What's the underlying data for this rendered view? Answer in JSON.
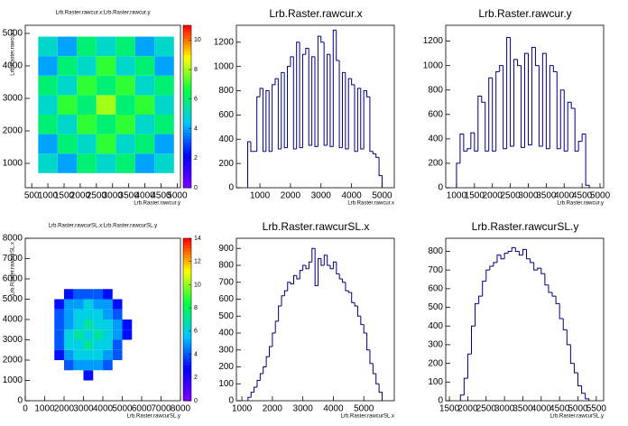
{
  "chart_data": [
    {
      "type": "heatmap",
      "title": "Lrb.Raster.rawcur.x:Lrb.Raster.rawcur.y",
      "x_label": "Lrb.Raster.rawcur.y",
      "y_label": "Lrb.Raster.rawcur.x",
      "xbins": [
        700,
        1300,
        1900,
        2500,
        3100,
        3700,
        4300,
        4900
      ],
      "ybins": [
        700,
        1300,
        1900,
        2500,
        3100,
        3700,
        4300,
        4900
      ],
      "z": [
        [
          5,
          4,
          6,
          5,
          6,
          4,
          5
        ],
        [
          4,
          6,
          5,
          7,
          5,
          6,
          4
        ],
        [
          6,
          5,
          7,
          6,
          7,
          5,
          6
        ],
        [
          5,
          7,
          6,
          8,
          6,
          7,
          5
        ],
        [
          6,
          5,
          7,
          6,
          7,
          5,
          6
        ],
        [
          4,
          6,
          5,
          7,
          5,
          6,
          4
        ],
        [
          5,
          4,
          6,
          5,
          6,
          4,
          5
        ]
      ],
      "xlim": [
        300,
        5100
      ],
      "xticks": [
        500,
        1000,
        1500,
        2000,
        2500,
        3000,
        3500,
        4000,
        4500,
        5000
      ],
      "ylim": [
        250,
        5250
      ],
      "yticks": [
        1000,
        2000,
        3000,
        4000,
        5000
      ],
      "zlim": [
        0,
        11
      ],
      "zticks": [
        0,
        2,
        4,
        6,
        8,
        10
      ],
      "palette": [
        "#8000ff",
        "#0000ff",
        "#00c8ff",
        "#00ff40",
        "#ffff00",
        "#ff0000"
      ]
    },
    {
      "type": "histogram",
      "title": "Lrb.Raster.rawcur.x",
      "x_label": "Lrb.Raster.rawcur.x",
      "color": "#000080",
      "bins": [
        600,
        700,
        800,
        900,
        1000,
        1100,
        1200,
        1300,
        1400,
        1500,
        1600,
        1700,
        1800,
        1900,
        2000,
        2100,
        2200,
        2300,
        2400,
        2500,
        2600,
        2700,
        2800,
        2900,
        3000,
        3100,
        3200,
        3300,
        3400,
        3500,
        3600,
        3700,
        3800,
        3900,
        4000,
        4100,
        4200,
        4300,
        4400,
        4500,
        4600,
        4700,
        4800,
        4900,
        5000
      ],
      "values": [
        380,
        300,
        300,
        750,
        820,
        300,
        800,
        300,
        850,
        900,
        320,
        950,
        330,
        1000,
        1080,
        320,
        1200,
        330,
        1100,
        1150,
        350,
        1080,
        340,
        1250,
        1200,
        350,
        1100,
        340,
        1300,
        1050,
        330,
        950,
        320,
        900,
        850,
        300,
        820,
        320,
        800,
        750,
        300,
        280,
        250,
        100
      ],
      "xlim": [
        230,
        5400
      ],
      "xticks": [
        1000,
        2000,
        3000,
        4000,
        5000
      ],
      "ylim": [
        0,
        1340
      ],
      "yticks": [
        0,
        200,
        400,
        600,
        800,
        1000,
        1200
      ]
    },
    {
      "type": "histogram",
      "title": "Lrb.Raster.rawcur.y",
      "x_label": "Lrb.Raster.rawcur.y",
      "color": "#000080",
      "bins": [
        1000,
        1100,
        1200,
        1300,
        1400,
        1500,
        1600,
        1700,
        1800,
        1900,
        2000,
        2100,
        2200,
        2300,
        2400,
        2500,
        2600,
        2700,
        2800,
        2900,
        3000,
        3100,
        3200,
        3300,
        3400,
        3500,
        3600,
        3700,
        3800,
        3900,
        4000,
        4100,
        4200,
        4300,
        4400,
        4500,
        4600,
        4700
      ],
      "values": [
        200,
        440,
        300,
        320,
        450,
        300,
        750,
        700,
        300,
        900,
        300,
        950,
        1000,
        320,
        1230,
        340,
        1050,
        1000,
        330,
        1100,
        350,
        1150,
        1000,
        340,
        1100,
        320,
        1000,
        950,
        320,
        800,
        300,
        700,
        650,
        300,
        380,
        440,
        20
      ],
      "xlim": [
        700,
        5100
      ],
      "xticks": [
        1000,
        1500,
        2000,
        2500,
        3000,
        3500,
        4000,
        4500,
        5000
      ],
      "ylim": [
        0,
        1330
      ],
      "yticks": [
        0,
        200,
        400,
        600,
        800,
        1000,
        1200
      ]
    },
    {
      "type": "heatmap",
      "title": "Lrb.Raster.rawcurSL.x:Lrb.Raster.rawcurSL.y",
      "x_label": "Lrb.Raster.rawcurSL.y",
      "y_label": "Lrb.Raster.rawcurSL.x",
      "xbins": [
        1000,
        1500,
        2000,
        2500,
        3000,
        3500,
        4000,
        4500,
        5000,
        5500
      ],
      "ybins": [
        1000,
        1500,
        2000,
        2500,
        3000,
        3500,
        4000,
        4500,
        5000,
        5500
      ],
      "z": [
        [
          null,
          null,
          null,
          null,
          3,
          null,
          null,
          null,
          null
        ],
        [
          null,
          null,
          4,
          5,
          5,
          5,
          4,
          null,
          null
        ],
        [
          null,
          3,
          5,
          6,
          6,
          6,
          5,
          4,
          null
        ],
        [
          null,
          4,
          6,
          6,
          7,
          6,
          6,
          4,
          null
        ],
        [
          null,
          4,
          6,
          7,
          6,
          7,
          6,
          5,
          3
        ],
        [
          null,
          4,
          5,
          6,
          7,
          6,
          6,
          5,
          3
        ],
        [
          null,
          4,
          5,
          6,
          6,
          6,
          5,
          4,
          null
        ],
        [
          null,
          3,
          5,
          5,
          6,
          5,
          5,
          3,
          null
        ],
        [
          null,
          null,
          3,
          4,
          4,
          4,
          3,
          null,
          null
        ]
      ],
      "xlim": [
        0,
        8000
      ],
      "xticks": [
        0,
        1000,
        2000,
        3000,
        4000,
        5000,
        6000,
        7000,
        8000
      ],
      "ylim": [
        0,
        8000
      ],
      "yticks": [
        0,
        1000,
        2000,
        3000,
        4000,
        5000,
        6000,
        7000,
        8000
      ],
      "zlim": [
        0,
        14
      ],
      "zticks": [
        0,
        2,
        4,
        6,
        8,
        10,
        12,
        14
      ],
      "palette": [
        "#8000ff",
        "#0000ff",
        "#00c8ff",
        "#00ff40",
        "#ffff00",
        "#ff0000"
      ]
    },
    {
      "type": "histogram",
      "title": "Lrb.Raster.rawcurSL.x",
      "x_label": "Lrb.Raster.rawcurSL.x",
      "color": "#000080",
      "bins": [
        1200,
        1300,
        1400,
        1500,
        1600,
        1700,
        1800,
        1900,
        2000,
        2100,
        2200,
        2300,
        2400,
        2500,
        2600,
        2700,
        2800,
        2900,
        3000,
        3100,
        3200,
        3300,
        3400,
        3500,
        3600,
        3700,
        3800,
        3900,
        4000,
        4100,
        4200,
        4300,
        4400,
        4500,
        4600,
        4700,
        4800,
        4900,
        5000,
        5100,
        5200,
        5300,
        5400,
        5500,
        5600
      ],
      "values": [
        20,
        50,
        80,
        120,
        160,
        200,
        260,
        320,
        400,
        470,
        560,
        620,
        650,
        700,
        690,
        740,
        720,
        770,
        800,
        780,
        820,
        900,
        680,
        840,
        800,
        860,
        800,
        780,
        820,
        750,
        720,
        700,
        650,
        640,
        580,
        560,
        500,
        450,
        400,
        300,
        220,
        160,
        100,
        50
      ],
      "xlim": [
        820,
        6000
      ],
      "xticks": [
        1000,
        2000,
        3000,
        4000,
        5000
      ],
      "ylim": [
        0,
        960
      ],
      "yticks": [
        0,
        100,
        200,
        300,
        400,
        500,
        600,
        700,
        800,
        900
      ]
    },
    {
      "type": "histogram",
      "title": "Lrb.Raster.rawcurSL.y",
      "x_label": "Lrb.Raster.rawcurSL.y",
      "color": "#000080",
      "bins": [
        1800,
        1900,
        2000,
        2100,
        2200,
        2300,
        2400,
        2500,
        2600,
        2700,
        2800,
        2900,
        3000,
        3100,
        3200,
        3300,
        3400,
        3500,
        3600,
        3700,
        3800,
        3900,
        4000,
        4100,
        4200,
        4300,
        4400,
        4500,
        4600,
        4700,
        4800,
        4900,
        5000,
        5100,
        5200,
        5300
      ],
      "values": [
        30,
        120,
        250,
        400,
        520,
        560,
        640,
        700,
        720,
        740,
        780,
        760,
        790,
        800,
        820,
        800,
        780,
        810,
        760,
        740,
        700,
        710,
        680,
        620,
        580,
        560,
        520,
        440,
        380,
        300,
        200,
        150,
        80,
        40,
        10
      ],
      "xlim": [
        1400,
        5700
      ],
      "xticks": [
        1500,
        2000,
        2500,
        3000,
        3500,
        4000,
        4500,
        5000,
        5500
      ],
      "ylim": [
        0,
        870
      ],
      "yticks": [
        0,
        100,
        200,
        300,
        400,
        500,
        600,
        700,
        800
      ]
    }
  ]
}
